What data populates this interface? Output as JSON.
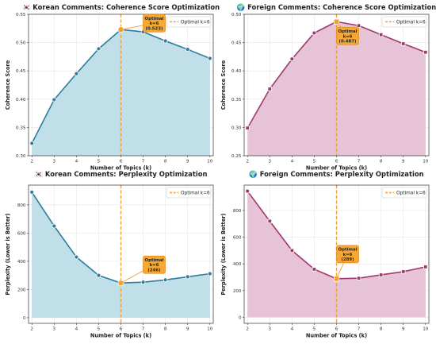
{
  "chart_data": [
    {
      "type": "area",
      "title": "🇰🇷 Korean Comments: Coherence Score Optimization",
      "xlabel": "Number of Topics (k)",
      "ylabel": "Coherence Score",
      "x": [
        2,
        3,
        4,
        5,
        6,
        7,
        8,
        9,
        10
      ],
      "values": [
        0.322,
        0.399,
        0.445,
        0.489,
        0.523,
        0.519,
        0.503,
        0.488,
        0.472
      ],
      "ylim": [
        0.3,
        0.55
      ],
      "yticks": [
        0.3,
        0.35,
        0.4,
        0.45,
        0.5,
        0.55
      ],
      "ytick_labels": [
        "0.30",
        "0.35",
        "0.40",
        "0.45",
        "0.50",
        "0.55"
      ],
      "xlim": [
        1.85,
        10.15
      ],
      "optimal_k": 6,
      "legend": "Optimal k=6",
      "legend_position": "top-right",
      "annotation": [
        "Optimal",
        "k=6",
        "(0.523)"
      ],
      "color": "#2e7d9e",
      "fill": "#b9dbe6",
      "marker": "circle",
      "grid": true
    },
    {
      "type": "area",
      "title": "🌍 Foreign Comments: Coherence Score Optimization",
      "xlabel": "Number of Topics (k)",
      "ylabel": "Coherence Score",
      "x": [
        2,
        3,
        4,
        5,
        6,
        7,
        8,
        9,
        10
      ],
      "values": [
        0.299,
        0.368,
        0.421,
        0.467,
        0.487,
        0.48,
        0.464,
        0.448,
        0.433
      ],
      "ylim": [
        0.25,
        0.5
      ],
      "yticks": [
        0.25,
        0.3,
        0.35,
        0.4,
        0.45,
        0.5
      ],
      "ytick_labels": [
        "0.25",
        "0.30",
        "0.35",
        "0.40",
        "0.45",
        "0.50"
      ],
      "xlim": [
        1.85,
        10.15
      ],
      "optimal_k": 6,
      "legend": "Optimal k=6",
      "legend_position": "top-right",
      "annotation": [
        "Optimal",
        "k=6",
        "(0.487)"
      ],
      "color": "#a0396e",
      "fill": "#e3bdd2",
      "marker": "square",
      "grid": true
    },
    {
      "type": "area",
      "title": "🇰🇷 Korean Comments: Perplexity Optimization",
      "xlabel": "Number of Topics (k)",
      "ylabel": "Perplexity (Lower is Better)",
      "x": [
        2,
        3,
        4,
        5,
        6,
        7,
        8,
        9,
        10
      ],
      "values": [
        890,
        650,
        430,
        300,
        246,
        252,
        268,
        290,
        312
      ],
      "ylim": [
        -40,
        940
      ],
      "yticks": [
        0,
        200,
        400,
        600,
        800
      ],
      "ytick_labels": [
        "0",
        "200",
        "400",
        "600",
        "800"
      ],
      "xlim": [
        1.85,
        10.15
      ],
      "optimal_k": 6,
      "legend": "Optimal k=6",
      "legend_position": "top-right",
      "annotation": [
        "Optimal",
        "k=6",
        "(246)"
      ],
      "color": "#2e7d9e",
      "fill": "#b9dbe6",
      "marker": "circle",
      "grid": true
    },
    {
      "type": "area",
      "title": "🌍 Foreign Comments: Perplexity Optimization",
      "xlabel": "Number of Topics (k)",
      "ylabel": "Perplexity (Lower is Better)",
      "x": [
        2,
        3,
        4,
        5,
        6,
        7,
        8,
        9,
        10
      ],
      "values": [
        945,
        720,
        500,
        360,
        289,
        293,
        318,
        342,
        378
      ],
      "ylim": [
        -45,
        990
      ],
      "yticks": [
        0,
        200,
        400,
        600,
        800
      ],
      "ytick_labels": [
        "0",
        "200",
        "400",
        "600",
        "800"
      ],
      "xlim": [
        1.85,
        10.15
      ],
      "optimal_k": 6,
      "legend": "Optimal k=6",
      "legend_position": "top-right",
      "annotation": [
        "Optimal",
        "k=6",
        "(289)"
      ],
      "color": "#a0396e",
      "fill": "#e3bdd2",
      "marker": "square",
      "grid": true
    }
  ]
}
